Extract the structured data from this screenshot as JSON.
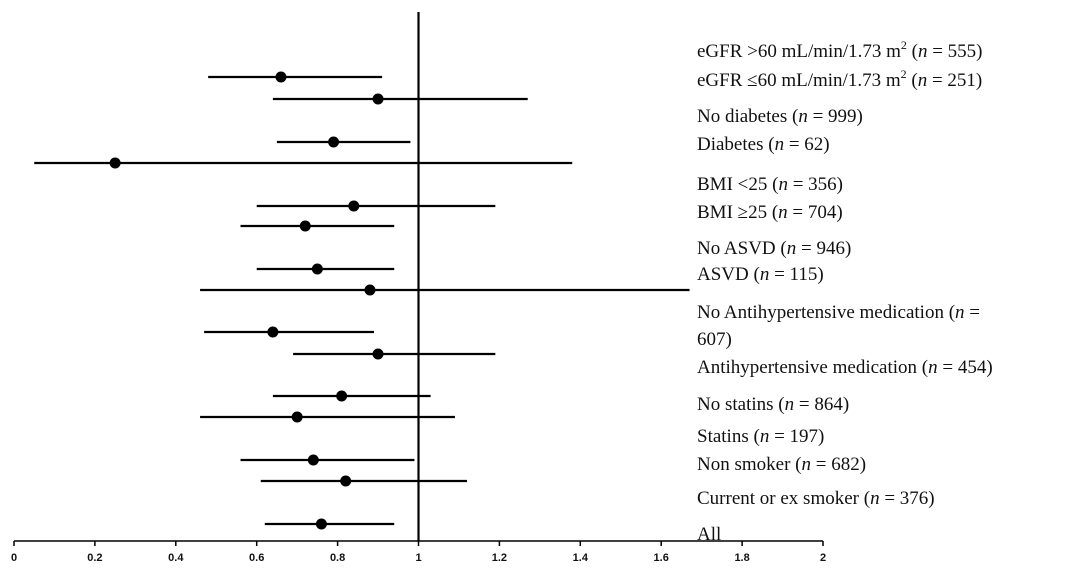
{
  "chart_data": {
    "type": "forest",
    "title": "",
    "xlabel": "",
    "ylabel": "",
    "xlim": [
      0,
      2
    ],
    "x_ticks": [
      "0",
      "0.2",
      "0.4",
      "0.6",
      "0.8",
      "1",
      "1.2",
      "1.4",
      "1.6",
      "1.8",
      "2"
    ],
    "reference_line": 1,
    "rows": [
      {
        "estimate": 0.66,
        "lower": 0.48,
        "upper": 0.91
      },
      {
        "estimate": 0.9,
        "lower": 0.64,
        "upper": 1.27
      },
      {
        "estimate": 0.79,
        "lower": 0.65,
        "upper": 0.98
      },
      {
        "estimate": 0.25,
        "lower": 0.05,
        "upper": 1.38
      },
      {
        "estimate": 0.84,
        "lower": 0.6,
        "upper": 1.19
      },
      {
        "estimate": 0.72,
        "lower": 0.56,
        "upper": 0.94
      },
      {
        "estimate": 0.75,
        "lower": 0.6,
        "upper": 0.94
      },
      {
        "estimate": 0.88,
        "lower": 0.46,
        "upper": 1.67
      },
      {
        "estimate": 0.64,
        "lower": 0.47,
        "upper": 0.89
      },
      {
        "estimate": 0.9,
        "lower": 0.69,
        "upper": 1.19
      },
      {
        "estimate": 0.81,
        "lower": 0.64,
        "upper": 1.03
      },
      {
        "estimate": 0.7,
        "lower": 0.46,
        "upper": 1.09
      },
      {
        "estimate": 0.74,
        "lower": 0.56,
        "upper": 0.99
      },
      {
        "estimate": 0.82,
        "lower": 0.61,
        "upper": 1.12
      },
      {
        "estimate": 0.76,
        "lower": 0.62,
        "upper": 0.94
      }
    ],
    "labels": [
      {
        "lines": [
          [
            {
              "t": "eGFR  >60 mL/min/1.73 m"
            },
            {
              "t": "2",
              "sup": true
            },
            {
              "t": " ("
            },
            {
              "t": "n",
              "i": true
            },
            {
              "t": " = 555)"
            }
          ]
        ]
      },
      {
        "lines": [
          [
            {
              "t": "eGFR ≤60 mL/min/1.73 m"
            },
            {
              "t": "2",
              "sup": true
            },
            {
              "t": " ("
            },
            {
              "t": "n",
              "i": true
            },
            {
              "t": " = 251)"
            }
          ]
        ]
      },
      {
        "lines": [
          [
            {
              "t": "No diabetes ("
            },
            {
              "t": "n",
              "i": true
            },
            {
              "t": " = 999)"
            }
          ]
        ]
      },
      {
        "lines": [
          [
            {
              "t": "Diabetes ("
            },
            {
              "t": "n",
              "i": true
            },
            {
              "t": " = 62)"
            }
          ]
        ]
      },
      {
        "lines": [
          [
            {
              "t": "BMI <25 ("
            },
            {
              "t": "n",
              "i": true
            },
            {
              "t": " = 356)"
            }
          ]
        ]
      },
      {
        "lines": [
          [
            {
              "t": "BMI ≥25 ("
            },
            {
              "t": "n",
              "i": true
            },
            {
              "t": " = 704)"
            }
          ]
        ]
      },
      {
        "lines": [
          [
            {
              "t": "No ASVD ("
            },
            {
              "t": "n",
              "i": true
            },
            {
              "t": " = 946)"
            }
          ]
        ]
      },
      {
        "lines": [
          [
            {
              "t": "ASVD ("
            },
            {
              "t": "n",
              "i": true
            },
            {
              "t": " = 115)"
            }
          ]
        ]
      },
      {
        "lines": [
          [
            {
              "t": "No Antihypertensive medication ("
            },
            {
              "t": "n",
              "i": true
            },
            {
              "t": " ="
            }
          ],
          [
            {
              "t": "607)"
            }
          ]
        ]
      },
      {
        "lines": [
          [
            {
              "t": "Antihypertensive medication ("
            },
            {
              "t": "n",
              "i": true
            },
            {
              "t": " = 454)"
            }
          ]
        ]
      },
      {
        "lines": [
          [
            {
              "t": "No statins ("
            },
            {
              "t": "n",
              "i": true
            },
            {
              "t": " = 864)"
            }
          ]
        ]
      },
      {
        "lines": [
          [
            {
              "t": "Statins ("
            },
            {
              "t": "n",
              "i": true
            },
            {
              "t": " = 197)"
            }
          ]
        ]
      },
      {
        "lines": [
          [
            {
              "t": "Non smoker ("
            },
            {
              "t": "n",
              "i": true
            },
            {
              "t": " = 682)"
            }
          ]
        ]
      },
      {
        "lines": [
          [
            {
              "t": "Current or ex smoker ("
            },
            {
              "t": "n",
              "i": true
            },
            {
              "t": " = 376)"
            }
          ]
        ]
      },
      {
        "lines": [
          [
            {
              "t": "All"
            }
          ]
        ]
      }
    ]
  }
}
